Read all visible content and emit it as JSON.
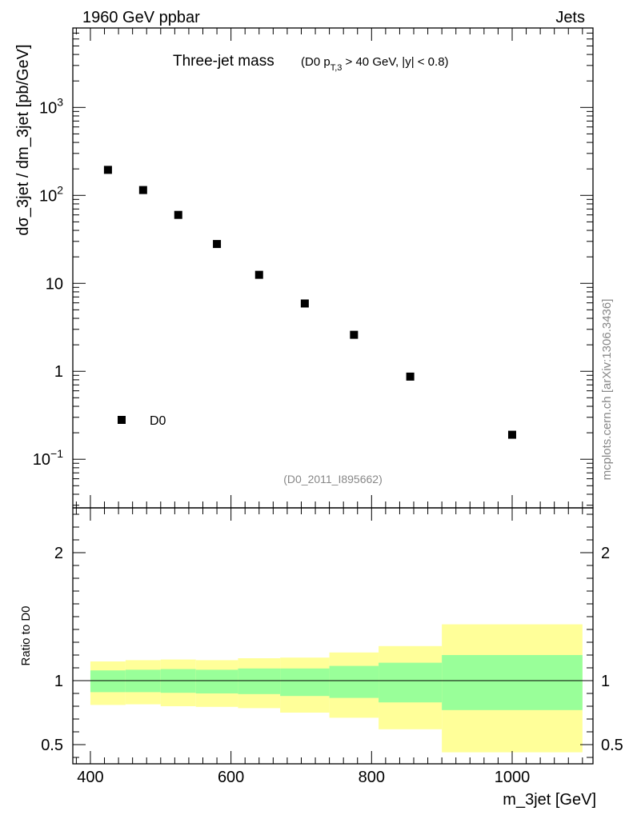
{
  "header": {
    "left": "1960 GeV ppbar",
    "right": "Jets"
  },
  "side_label": "mcplots.cern.ch [arXiv:1306.3436]",
  "analysis_id": "(D0_2011_I895662)",
  "colors": {
    "inner_band": "#99ff99",
    "outer_band": "#ffff99",
    "markers": "#000000"
  },
  "chart_data": [
    {
      "type": "scatter",
      "panel": "main",
      "title_main": "Three-jet mass",
      "title_sub_prefix": "(D0 p",
      "title_sub_subscript": "T,3",
      "title_sub_suffix": " > 40 GeV, |y| < 0.8)",
      "ylabel": "dσ_3jet / dm_3jet [pb/GeV]",
      "yscale": "log",
      "ylim": [
        0.028,
        8000
      ],
      "xlim": [
        375,
        1115
      ],
      "yticks": [
        {
          "value": 1000,
          "base": "10",
          "exp": "3"
        },
        {
          "value": 100,
          "base": "10",
          "exp": "2"
        },
        {
          "value": 10,
          "base": "10",
          "exp": ""
        },
        {
          "value": 1,
          "base": "1",
          "exp": ""
        },
        {
          "value": 0.1,
          "base": "10",
          "exp": "−1"
        }
      ],
      "series": [
        {
          "name": "D0",
          "x": [
            425,
            475,
            525,
            580,
            640,
            705,
            775,
            855,
            1000
          ],
          "y": [
            195,
            115,
            60,
            28,
            12.5,
            5.9,
            2.6,
            0.87,
            0.19
          ]
        }
      ],
      "legend": {
        "label": "D0",
        "position": "bottom-left"
      }
    },
    {
      "type": "area",
      "panel": "ratio",
      "ylabel": "Ratio to D0",
      "xlabel": "m_3jet [GeV]",
      "ylim": [
        0.35,
        2.35
      ],
      "xlim": [
        375,
        1115
      ],
      "reference_line": 1,
      "yticks": [
        "0.5",
        "1",
        "2"
      ],
      "ytick_values": [
        0.5,
        1,
        2
      ],
      "xticks": [
        "400",
        "600",
        "800",
        "1000"
      ],
      "xtick_values": [
        400,
        600,
        800,
        1000
      ],
      "bins": [
        {
          "lo": 400,
          "hi": 450,
          "inner": [
            0.91,
            1.08
          ],
          "outer": [
            0.81,
            1.15
          ]
        },
        {
          "lo": 450,
          "hi": 500,
          "inner": [
            0.91,
            1.085
          ],
          "outer": [
            0.815,
            1.16
          ]
        },
        {
          "lo": 500,
          "hi": 550,
          "inner": [
            0.905,
            1.09
          ],
          "outer": [
            0.8,
            1.165
          ]
        },
        {
          "lo": 550,
          "hi": 610,
          "inner": [
            0.9,
            1.085
          ],
          "outer": [
            0.795,
            1.16
          ]
        },
        {
          "lo": 610,
          "hi": 670,
          "inner": [
            0.895,
            1.095
          ],
          "outer": [
            0.785,
            1.175
          ]
        },
        {
          "lo": 670,
          "hi": 740,
          "inner": [
            0.88,
            1.095
          ],
          "outer": [
            0.75,
            1.18
          ]
        },
        {
          "lo": 740,
          "hi": 810,
          "inner": [
            0.865,
            1.115
          ],
          "outer": [
            0.71,
            1.22
          ]
        },
        {
          "lo": 810,
          "hi": 900,
          "inner": [
            0.83,
            1.14
          ],
          "outer": [
            0.62,
            1.27
          ]
        },
        {
          "lo": 900,
          "hi": 1100,
          "inner": [
            0.77,
            1.2
          ],
          "outer": [
            0.44,
            1.44
          ]
        }
      ]
    }
  ]
}
